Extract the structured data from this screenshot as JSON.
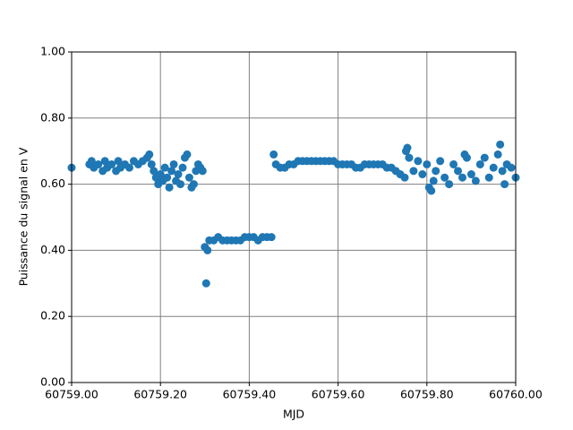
{
  "chart_data": {
    "type": "scatter",
    "x_label": "MJD",
    "y_label": "Puissance du signal en V",
    "color": "#1f77b4",
    "grid": true,
    "xlim": [
      60759.0,
      60760.0
    ],
    "xticks": [
      {
        "value": 60759.0,
        "label": "60759.00"
      },
      {
        "value": 60759.2,
        "label": "60759.20"
      },
      {
        "value": 60759.4,
        "label": "60759.40"
      },
      {
        "value": 60759.6,
        "label": "60759.60"
      },
      {
        "value": 60759.8,
        "label": "60759.80"
      },
      {
        "value": 60760.0,
        "label": "60760.00"
      }
    ],
    "ylim": [
      0,
      1
    ],
    "yticks": [
      {
        "value": 0,
        "label": "0.00"
      },
      {
        "value": 0.2,
        "label": "0.20"
      },
      {
        "value": 0.4,
        "label": "0.40"
      },
      {
        "value": 0.6,
        "label": "0.60"
      },
      {
        "value": 0.8,
        "label": "0.80"
      },
      {
        "value": 1,
        "label": "1.00"
      }
    ],
    "x": [
      60759.0,
      60759.04,
      60759.045,
      60759.05,
      60759.06,
      60759.07,
      60759.075,
      60759.08,
      60759.09,
      60759.1,
      60759.105,
      60759.11,
      60759.12,
      60759.13,
      60759.14,
      60759.15,
      60759.16,
      60759.17,
      60759.175,
      60759.18,
      60759.185,
      60759.19,
      60759.195,
      60759.2,
      60759.205,
      60759.21,
      60759.215,
      60759.22,
      60759.225,
      60759.23,
      60759.235,
      60759.24,
      60759.245,
      60759.25,
      60759.255,
      60759.26,
      60759.265,
      60759.27,
      60759.275,
      60759.28,
      60759.285,
      60759.29,
      60759.295,
      60759.3,
      60759.303,
      60759.306,
      60759.31,
      60759.32,
      60759.33,
      60759.34,
      60759.35,
      60759.36,
      60759.37,
      60759.38,
      60759.39,
      60759.4,
      60759.41,
      60759.42,
      60759.43,
      60759.44,
      60759.45,
      60759.455,
      60759.46,
      60759.47,
      60759.48,
      60759.49,
      60759.5,
      60759.51,
      60759.52,
      60759.53,
      60759.54,
      60759.55,
      60759.56,
      60759.57,
      60759.58,
      60759.59,
      60759.6,
      60759.61,
      60759.62,
      60759.63,
      60759.64,
      60759.65,
      60759.66,
      60759.67,
      60759.68,
      60759.69,
      60759.7,
      60759.71,
      60759.72,
      60759.73,
      60759.74,
      60759.75,
      60759.753,
      60759.756,
      60759.76,
      60759.77,
      60759.78,
      60759.79,
      60759.8,
      60759.805,
      60759.81,
      60759.815,
      60759.82,
      60759.83,
      60759.84,
      60759.85,
      60759.86,
      60759.87,
      60759.88,
      60759.885,
      60759.89,
      60759.9,
      60759.91,
      60759.92,
      60759.93,
      60759.94,
      60759.95,
      60759.96,
      60759.965,
      60759.97,
      60759.975,
      60759.98,
      60759.99,
      60760.0
    ],
    "values": [
      0.65,
      0.66,
      0.67,
      0.65,
      0.66,
      0.64,
      0.67,
      0.65,
      0.66,
      0.64,
      0.67,
      0.65,
      0.66,
      0.65,
      0.67,
      0.66,
      0.67,
      0.68,
      0.69,
      0.66,
      0.64,
      0.62,
      0.6,
      0.63,
      0.61,
      0.65,
      0.62,
      0.59,
      0.64,
      0.66,
      0.61,
      0.63,
      0.6,
      0.65,
      0.68,
      0.69,
      0.62,
      0.59,
      0.6,
      0.64,
      0.66,
      0.65,
      0.64,
      0.41,
      0.3,
      0.4,
      0.43,
      0.43,
      0.44,
      0.43,
      0.43,
      0.43,
      0.43,
      0.43,
      0.44,
      0.44,
      0.44,
      0.43,
      0.44,
      0.44,
      0.44,
      0.69,
      0.66,
      0.65,
      0.65,
      0.66,
      0.66,
      0.67,
      0.67,
      0.67,
      0.67,
      0.67,
      0.67,
      0.67,
      0.67,
      0.67,
      0.66,
      0.66,
      0.66,
      0.66,
      0.65,
      0.65,
      0.66,
      0.66,
      0.66,
      0.66,
      0.66,
      0.65,
      0.65,
      0.64,
      0.63,
      0.62,
      0.7,
      0.71,
      0.68,
      0.64,
      0.67,
      0.63,
      0.66,
      0.59,
      0.58,
      0.61,
      0.64,
      0.67,
      0.62,
      0.6,
      0.66,
      0.64,
      0.62,
      0.69,
      0.68,
      0.63,
      0.61,
      0.66,
      0.68,
      0.62,
      0.65,
      0.69,
      0.72,
      0.64,
      0.6,
      0.66,
      0.65,
      0.62
    ]
  }
}
